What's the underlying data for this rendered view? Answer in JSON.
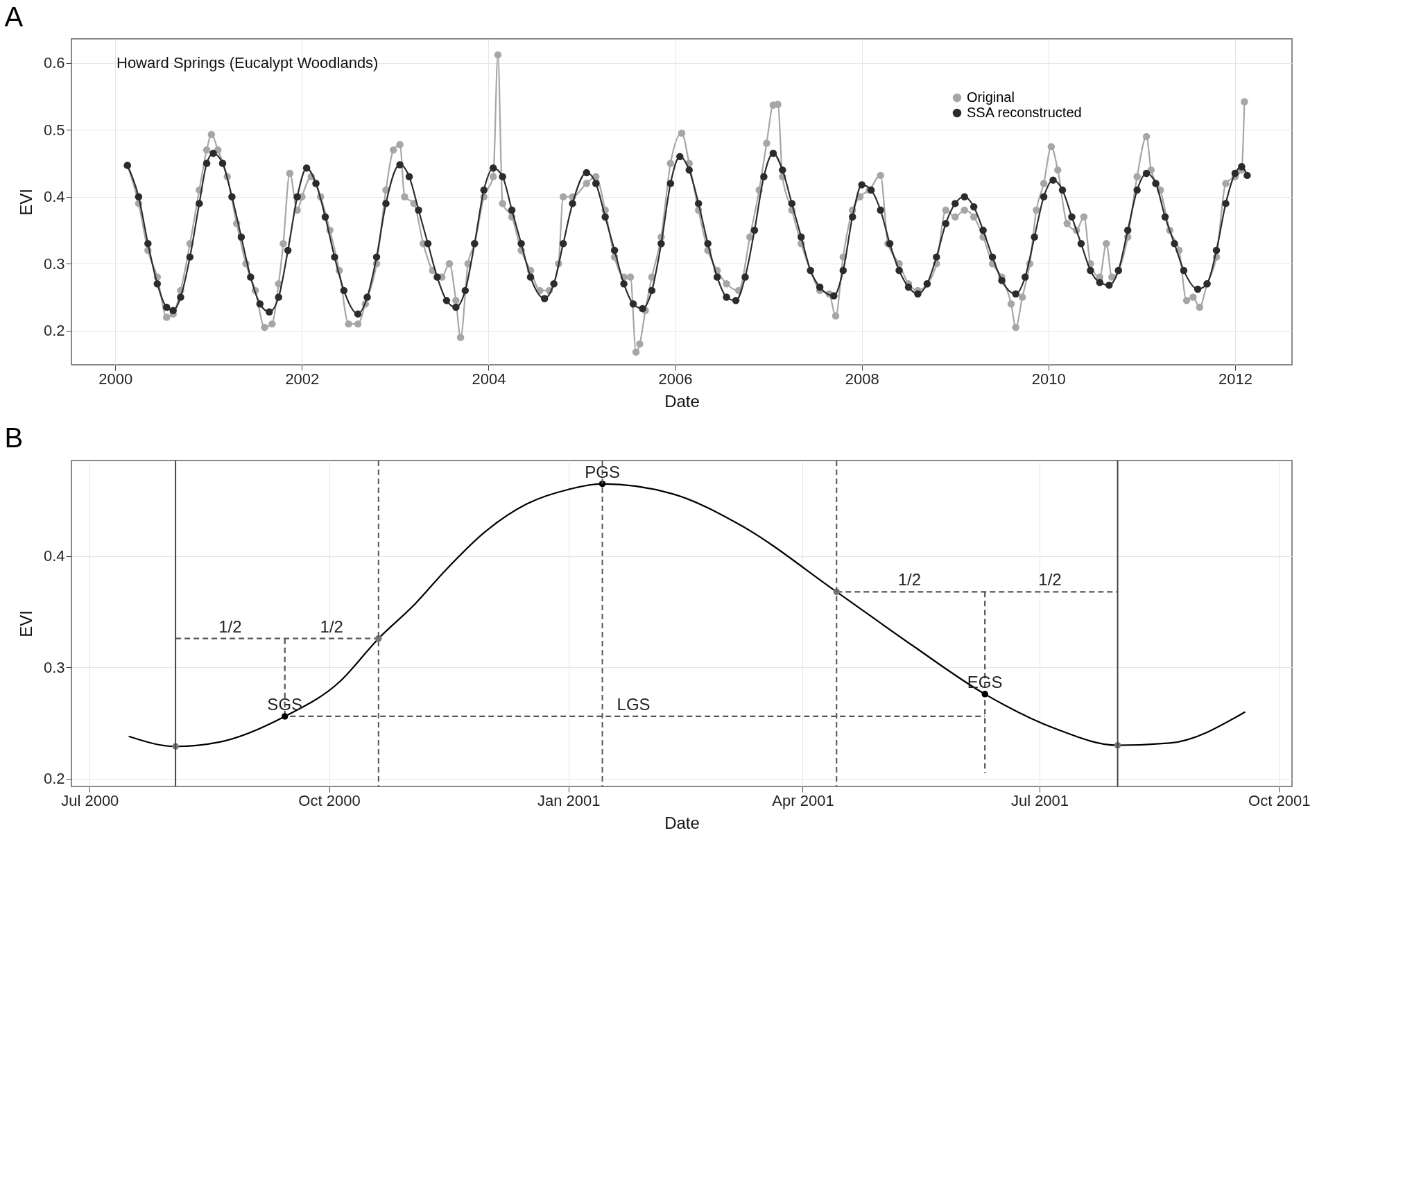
{
  "chart_data": [
    {
      "type": "line",
      "title": "A",
      "xlabel": "Date",
      "ylabel": "EVI",
      "annotations": [
        "Howard Springs (Eucalypt Woodlands)"
      ],
      "xlim": [
        1999.53,
        2012.61
      ],
      "xticks": [
        2000,
        2002,
        2004,
        2006,
        2008,
        2010,
        2012
      ],
      "ylim": [
        0.149,
        0.636
      ],
      "yticks": [
        0.2,
        0.3,
        0.4,
        0.5,
        0.6
      ],
      "grid": true,
      "legend": "top right",
      "marker": "circle",
      "line_style": "solid",
      "series": [
        {
          "name": "Original",
          "color": "#a6a6a6",
          "x": [
            2000.13,
            2000.25,
            2000.35,
            2000.45,
            2000.55,
            2000.62,
            2000.7,
            2000.8,
            2000.9,
            2000.98,
            2001.03,
            2001.1,
            2001.2,
            2001.3,
            2001.4,
            2001.5,
            2001.6,
            2001.68,
            2001.75,
            2001.8,
            2001.87,
            2001.95,
            2002.0,
            2002.1,
            2002.2,
            2002.3,
            2002.4,
            2002.5,
            2002.6,
            2002.68,
            2002.8,
            2002.9,
            2002.98,
            2003.05,
            2003.1,
            2003.2,
            2003.3,
            2003.4,
            2003.5,
            2003.58,
            2003.65,
            2003.7,
            2003.78,
            2003.85,
            2003.95,
            2004.05,
            2004.1,
            2004.15,
            2004.25,
            2004.35,
            2004.45,
            2004.55,
            2004.65,
            2004.75,
            2004.8,
            2004.9,
            2005.05,
            2005.15,
            2005.25,
            2005.35,
            2005.45,
            2005.52,
            2005.58,
            2005.62,
            2005.68,
            2005.75,
            2005.85,
            2005.95,
            2006.07,
            2006.15,
            2006.25,
            2006.35,
            2006.45,
            2006.55,
            2006.68,
            2006.8,
            2006.9,
            2006.98,
            2007.05,
            2007.1,
            2007.15,
            2007.25,
            2007.35,
            2007.45,
            2007.55,
            2007.65,
            2007.72,
            2007.8,
            2007.9,
            2007.98,
            2008.08,
            2008.2,
            2008.28,
            2008.4,
            2008.5,
            2008.6,
            2008.7,
            2008.8,
            2008.9,
            2009.0,
            2009.1,
            2009.2,
            2009.3,
            2009.4,
            2009.5,
            2009.6,
            2009.65,
            2009.72,
            2009.8,
            2009.87,
            2009.95,
            2010.03,
            2010.1,
            2010.2,
            2010.3,
            2010.38,
            2010.45,
            2010.55,
            2010.62,
            2010.68,
            2010.75,
            2010.85,
            2010.95,
            2011.05,
            2011.1,
            2011.2,
            2011.3,
            2011.4,
            2011.48,
            2011.55,
            2011.62,
            2011.7,
            2011.8,
            2011.9,
            2012.0,
            2012.07,
            2012.1
          ],
          "values": [
            0.447,
            0.39,
            0.32,
            0.28,
            0.22,
            0.225,
            0.26,
            0.33,
            0.41,
            0.47,
            0.493,
            0.47,
            0.43,
            0.36,
            0.3,
            0.26,
            0.205,
            0.21,
            0.27,
            0.33,
            0.435,
            0.38,
            0.4,
            0.43,
            0.4,
            0.35,
            0.29,
            0.21,
            0.21,
            0.24,
            0.3,
            0.41,
            0.47,
            0.478,
            0.4,
            0.39,
            0.33,
            0.29,
            0.28,
            0.3,
            0.245,
            0.19,
            0.3,
            0.33,
            0.4,
            0.43,
            0.612,
            0.39,
            0.37,
            0.32,
            0.29,
            0.26,
            0.26,
            0.3,
            0.4,
            0.4,
            0.42,
            0.43,
            0.38,
            0.31,
            0.28,
            0.28,
            0.168,
            0.18,
            0.23,
            0.28,
            0.34,
            0.45,
            0.495,
            0.45,
            0.38,
            0.32,
            0.29,
            0.27,
            0.26,
            0.34,
            0.41,
            0.48,
            0.537,
            0.538,
            0.43,
            0.38,
            0.33,
            0.29,
            0.26,
            0.255,
            0.222,
            0.31,
            0.38,
            0.4,
            0.41,
            0.432,
            0.33,
            0.3,
            0.27,
            0.26,
            0.27,
            0.3,
            0.38,
            0.37,
            0.38,
            0.37,
            0.34,
            0.3,
            0.28,
            0.24,
            0.205,
            0.25,
            0.3,
            0.38,
            0.42,
            0.475,
            0.44,
            0.36,
            0.35,
            0.37,
            0.3,
            0.28,
            0.33,
            0.28,
            0.29,
            0.34,
            0.43,
            0.49,
            0.44,
            0.41,
            0.35,
            0.32,
            0.245,
            0.25,
            0.235,
            0.27,
            0.31,
            0.42,
            0.43,
            0.44,
            0.542
          ]
        },
        {
          "name": "SSA reconstructed",
          "color": "#2b2b2b",
          "x": [
            2000.13,
            2000.25,
            2000.35,
            2000.45,
            2000.55,
            2000.62,
            2000.7,
            2000.8,
            2000.9,
            2000.98,
            2001.05,
            2001.15,
            2001.25,
            2001.35,
            2001.45,
            2001.55,
            2001.65,
            2001.75,
            2001.85,
            2001.95,
            2002.05,
            2002.15,
            2002.25,
            2002.35,
            2002.45,
            2002.6,
            2002.7,
            2002.8,
            2002.9,
            2003.05,
            2003.15,
            2003.25,
            2003.35,
            2003.45,
            2003.55,
            2003.65,
            2003.75,
            2003.85,
            2003.95,
            2004.05,
            2004.15,
            2004.25,
            2004.35,
            2004.45,
            2004.6,
            2004.7,
            2004.8,
            2004.9,
            2005.05,
            2005.15,
            2005.25,
            2005.35,
            2005.45,
            2005.55,
            2005.65,
            2005.75,
            2005.85,
            2005.95,
            2006.05,
            2006.15,
            2006.25,
            2006.35,
            2006.45,
            2006.55,
            2006.65,
            2006.75,
            2006.85,
            2006.95,
            2007.05,
            2007.15,
            2007.25,
            2007.35,
            2007.45,
            2007.55,
            2007.7,
            2007.8,
            2007.9,
            2008.0,
            2008.1,
            2008.2,
            2008.3,
            2008.4,
            2008.5,
            2008.6,
            2008.7,
            2008.8,
            2008.9,
            2009.0,
            2009.1,
            2009.2,
            2009.3,
            2009.4,
            2009.5,
            2009.65,
            2009.75,
            2009.85,
            2009.95,
            2010.05,
            2010.15,
            2010.25,
            2010.35,
            2010.45,
            2010.55,
            2010.65,
            2010.75,
            2010.85,
            2010.95,
            2011.05,
            2011.15,
            2011.25,
            2011.35,
            2011.45,
            2011.6,
            2011.7,
            2011.8,
            2011.9,
            2012.0,
            2012.07,
            2012.13
          ],
          "values": [
            0.447,
            0.4,
            0.33,
            0.27,
            0.235,
            0.23,
            0.25,
            0.31,
            0.39,
            0.45,
            0.465,
            0.45,
            0.4,
            0.34,
            0.28,
            0.24,
            0.228,
            0.25,
            0.32,
            0.4,
            0.443,
            0.42,
            0.37,
            0.31,
            0.26,
            0.225,
            0.25,
            0.31,
            0.39,
            0.448,
            0.43,
            0.38,
            0.33,
            0.28,
            0.245,
            0.235,
            0.26,
            0.33,
            0.41,
            0.443,
            0.43,
            0.38,
            0.33,
            0.28,
            0.248,
            0.27,
            0.33,
            0.39,
            0.436,
            0.42,
            0.37,
            0.32,
            0.27,
            0.24,
            0.233,
            0.26,
            0.33,
            0.42,
            0.46,
            0.44,
            0.39,
            0.33,
            0.28,
            0.25,
            0.245,
            0.28,
            0.35,
            0.43,
            0.465,
            0.44,
            0.39,
            0.34,
            0.29,
            0.265,
            0.252,
            0.29,
            0.37,
            0.418,
            0.41,
            0.38,
            0.33,
            0.29,
            0.265,
            0.255,
            0.27,
            0.31,
            0.36,
            0.39,
            0.4,
            0.385,
            0.35,
            0.31,
            0.275,
            0.255,
            0.28,
            0.34,
            0.4,
            0.425,
            0.41,
            0.37,
            0.33,
            0.29,
            0.272,
            0.268,
            0.29,
            0.35,
            0.41,
            0.435,
            0.42,
            0.37,
            0.33,
            0.29,
            0.262,
            0.27,
            0.32,
            0.39,
            0.435,
            0.445,
            0.432
          ]
        }
      ]
    },
    {
      "type": "line",
      "title": "B",
      "xlabel": "Date",
      "ylabel": "EVI",
      "xlim": [
        "2000-06-24",
        "2001-10-06"
      ],
      "xticks": [
        {
          "value": "2000-07-01",
          "label": "Jul 2000"
        },
        {
          "value": "2000-10-01",
          "label": "Oct 2000"
        },
        {
          "value": "2001-01-01",
          "label": "Jan 2001"
        },
        {
          "value": "2001-04-01",
          "label": "Apr 2001"
        },
        {
          "value": "2001-07-01",
          "label": "Jul 2001"
        },
        {
          "value": "2001-10-01",
          "label": "Oct 2001"
        }
      ],
      "ylim": [
        0.193,
        0.486
      ],
      "yticks": [
        0.2,
        0.3,
        0.4
      ],
      "grid": true,
      "marker": "none",
      "line_style": "solid",
      "series": [
        {
          "color": "#000000",
          "x": [
            "2000-07-16",
            "2000-08-03",
            "2000-08-20",
            "2000-09-14",
            "2000-10-05",
            "2000-10-20",
            "2000-11-03",
            "2000-11-15",
            "2000-11-30",
            "2000-12-16",
            "2001-01-01",
            "2001-01-14",
            "2001-02-10",
            "2001-03-08",
            "2001-04-14",
            "2001-05-13",
            "2001-06-10",
            "2001-07-07",
            "2001-07-31",
            "2001-08-20",
            "2001-09-18"
          ],
          "values": [
            0.238,
            0.229,
            0.233,
            0.256,
            0.287,
            0.326,
            0.357,
            0.388,
            0.422,
            0.447,
            0.46,
            0.465,
            0.456,
            0.428,
            0.368,
            0.32,
            0.276,
            0.245,
            0.23,
            0.232,
            0.26
          ]
        },
        {
          "color": "#555555",
          "line_style": "dashed",
          "x": [
            "2000-08-03",
            "2000-10-20"
          ],
          "values": [
            0.326,
            0.326
          ]
        },
        {
          "color": "#555555",
          "line_style": "dashed",
          "x": [
            "2000-09-14",
            "2000-09-14"
          ],
          "values": [
            0.326,
            0.256
          ]
        },
        {
          "color": "#555555",
          "line_style": "dashed",
          "x": [
            "2001-04-14",
            "2001-07-31"
          ],
          "values": [
            0.368,
            0.368
          ]
        },
        {
          "color": "#555555",
          "line_style": "dashed",
          "x": [
            "2001-06-10",
            "2001-06-10"
          ],
          "values": [
            0.368,
            0.205
          ]
        },
        {
          "color": "#555555",
          "line_style": "dashed",
          "x": [
            "2000-09-16",
            "2001-06-10"
          ],
          "values": [
            0.256,
            0.256
          ]
        },
        {
          "type": "scatter",
          "marker": "circle",
          "color": "#000000",
          "x": [
            "2000-09-14",
            "2001-01-14",
            "2001-06-10"
          ],
          "values": [
            0.256,
            0.465,
            0.276
          ]
        },
        {
          "type": "scatter",
          "marker": "circle",
          "color": "#777777",
          "x": [
            "2000-08-03",
            "2000-10-20",
            "2001-04-14",
            "2001-07-31"
          ],
          "values": [
            0.229,
            0.326,
            0.368,
            0.23
          ]
        }
      ],
      "ref_lines": [
        {
          "axis": "x",
          "value": "2000-08-03",
          "color": "#444444",
          "line_style": "solid"
        },
        {
          "axis": "x",
          "value": "2001-07-31",
          "color": "#444444",
          "line_style": "solid"
        },
        {
          "axis": "x",
          "value": "2000-10-20",
          "color": "#555555",
          "line_style": "dashed"
        },
        {
          "axis": "x",
          "value": "2001-01-14",
          "color": "#555555",
          "line_style": "dashed"
        },
        {
          "axis": "x",
          "value": "2001-04-14",
          "color": "#555555",
          "line_style": "dashed"
        }
      ],
      "annotations": [
        {
          "text": "SGS",
          "x": "2000-09-14",
          "y": 0.256
        },
        {
          "text": "PGS",
          "x": "2001-01-14",
          "y": 0.465
        },
        {
          "text": "EGS",
          "x": "2001-06-10",
          "y": 0.276
        },
        {
          "text": "LGS",
          "x": "2001-01-26",
          "y": 0.256
        },
        {
          "text": "1/2",
          "x": "2000-08-24",
          "y": 0.326
        },
        {
          "text": "1/2",
          "x": "2000-10-02",
          "y": 0.326
        },
        {
          "text": "1/2",
          "x": "2001-05-12",
          "y": 0.368
        },
        {
          "text": "1/2",
          "x": "2001-07-05",
          "y": 0.368
        }
      ]
    }
  ]
}
